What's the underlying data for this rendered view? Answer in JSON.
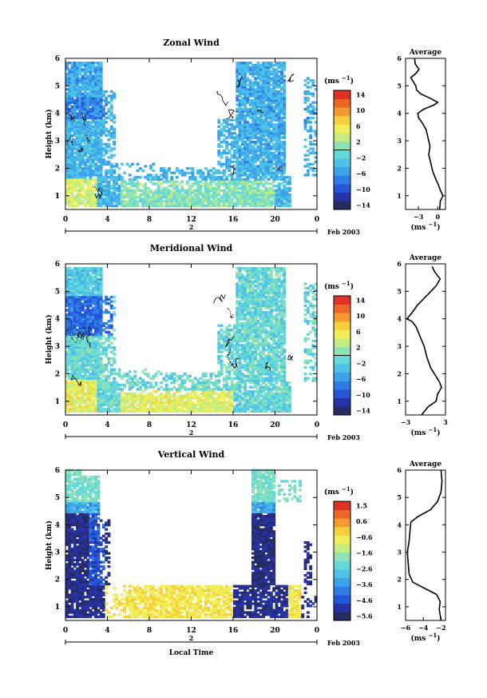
{
  "colors": {
    "cbar": [
      "#262b62",
      "#2633a6",
      "#2555d8",
      "#2f7ce6",
      "#3ca3e8",
      "#4cc2e8",
      "#66d8d8",
      "#8fe3b2",
      "#c2ed80",
      "#f0ee56",
      "#f7cf3c",
      "#f59a2f",
      "#ec6727",
      "#e03127"
    ],
    "line": "#000000",
    "bg": "#ffffff"
  },
  "chart_data": [
    {
      "type": "heatmap",
      "title": "Zonal Wind",
      "ylabel": "Height (km)",
      "xlabel": "",
      "x_ticks": [
        "0",
        "4",
        "8",
        "12",
        "16",
        "20",
        "0"
      ],
      "y_ticks": [
        "1",
        "2",
        "3",
        "4",
        "5",
        "6"
      ],
      "x_domain": [
        0,
        24
      ],
      "y_domain": [
        0.5,
        6
      ],
      "date_label": "2",
      "month_label": "Feb 2003",
      "colorbar": {
        "unit": "(ms",
        "unit_sup": "−1",
        "ticks": [
          "14",
          "10",
          "6",
          "2",
          "−2",
          "−6",
          "−10",
          "−14"
        ],
        "range": [
          -16,
          16
        ],
        "zero_level": 0
      },
      "profile": {
        "title": "Average",
        "xlabel": "(ms",
        "xlabel_sup": "−1",
        "x_ticks": [
          "−3",
          "0"
        ],
        "x_ticks_values": [
          -3,
          0
        ],
        "xlim": [
          -5,
          1.2
        ],
        "y_ticks": [
          "1",
          "2",
          "3",
          "4",
          "5",
          "6"
        ],
        "points": [
          [
            0.3,
            0.5
          ],
          [
            0.4,
            0.8
          ],
          [
            0.8,
            1.0
          ],
          [
            0.4,
            1.2
          ],
          [
            0.1,
            1.4
          ],
          [
            -0.3,
            1.6
          ],
          [
            -0.8,
            1.9
          ],
          [
            -1.1,
            2.2
          ],
          [
            -1.4,
            2.5
          ],
          [
            -1.2,
            2.8
          ],
          [
            -1.5,
            3.1
          ],
          [
            -1.8,
            3.4
          ],
          [
            -2.4,
            3.65
          ],
          [
            -3.0,
            3.85
          ],
          [
            -3.1,
            4.0
          ],
          [
            -2.2,
            4.15
          ],
          [
            -0.6,
            4.3
          ],
          [
            0.0,
            4.4
          ],
          [
            -1.2,
            4.55
          ],
          [
            -2.6,
            4.7
          ],
          [
            -3.3,
            4.85
          ],
          [
            -3.4,
            5.0
          ],
          [
            -3.8,
            5.15
          ],
          [
            -4.2,
            5.3
          ],
          [
            -3.4,
            5.45
          ],
          [
            -2.9,
            5.6
          ],
          [
            -3.5,
            5.8
          ],
          [
            -3.6,
            6.0
          ]
        ]
      }
    },
    {
      "type": "heatmap",
      "title": "Meridional Wind",
      "ylabel": "Height (km)",
      "xlabel": "",
      "x_ticks": [
        "0",
        "4",
        "8",
        "12",
        "16",
        "20",
        "0"
      ],
      "y_ticks": [
        "1",
        "2",
        "3",
        "4",
        "5",
        "6"
      ],
      "x_domain": [
        0,
        24
      ],
      "y_domain": [
        0.5,
        6
      ],
      "date_label": "2",
      "month_label": "Feb 2003",
      "colorbar": {
        "unit": "(ms",
        "unit_sup": "−1",
        "ticks": [
          "14",
          "10",
          "6",
          "2",
          "−2",
          "−6",
          "−10",
          "−14"
        ],
        "range": [
          -16,
          16
        ],
        "zero_level": 0
      },
      "profile": {
        "title": "Average",
        "xlabel": "(ms",
        "xlabel_sup": "−1",
        "x_ticks": [
          "−3",
          "3"
        ],
        "x_ticks_values": [
          -3,
          3
        ],
        "xlim": [
          -3,
          3
        ],
        "y_ticks": [
          "1",
          "2",
          "3",
          "4",
          "5",
          "6"
        ],
        "points": [
          [
            -0.6,
            0.5
          ],
          [
            0.4,
            0.8
          ],
          [
            1.6,
            1.0
          ],
          [
            1.8,
            1.25
          ],
          [
            2.4,
            1.5
          ],
          [
            2.1,
            1.7
          ],
          [
            1.6,
            1.9
          ],
          [
            0.8,
            2.2
          ],
          [
            0.2,
            2.6
          ],
          [
            -0.2,
            3.0
          ],
          [
            -0.9,
            3.4
          ],
          [
            -1.4,
            3.7
          ],
          [
            -2.0,
            3.9
          ],
          [
            -2.8,
            4.0
          ],
          [
            -2.1,
            4.2
          ],
          [
            -1.2,
            4.5
          ],
          [
            0.0,
            4.8
          ],
          [
            0.8,
            5.0
          ],
          [
            1.6,
            5.2
          ],
          [
            2.2,
            5.45
          ],
          [
            1.4,
            5.7
          ],
          [
            1.0,
            5.9
          ]
        ]
      }
    },
    {
      "type": "heatmap",
      "title": "Vertical Wind",
      "ylabel": "Height (km)",
      "xlabel": "Local Time",
      "x_ticks": [
        "0",
        "4",
        "8",
        "12",
        "16",
        "20",
        "0"
      ],
      "y_ticks": [
        "1",
        "2",
        "3",
        "4",
        "5",
        "6"
      ],
      "x_domain": [
        0,
        24
      ],
      "y_domain": [
        0.5,
        6
      ],
      "date_label": "2",
      "month_label": "Feb 2003",
      "colorbar": {
        "unit": "(ms",
        "unit_sup": "−1",
        "ticks": [
          "1.5",
          "0.6",
          "−0.6",
          "−1.6",
          "−2.6",
          "−3.6",
          "−4.6",
          "−5.6"
        ],
        "range": [
          -6.1,
          2.0
        ],
        "zero_level": null
      },
      "profile": {
        "title": "Average",
        "xlabel": "(ms",
        "xlabel_sup": "−1",
        "x_ticks": [
          "−6",
          "−4",
          "−2"
        ],
        "x_ticks_values": [
          -6,
          -4,
          -2
        ],
        "xlim": [
          -6,
          -1.5
        ],
        "y_ticks": [
          "1",
          "2",
          "3",
          "4",
          "5",
          "6"
        ],
        "points": [
          [
            -2.0,
            0.5
          ],
          [
            -2.2,
            0.9
          ],
          [
            -2.1,
            1.2
          ],
          [
            -2.5,
            1.45
          ],
          [
            -3.4,
            1.6
          ],
          [
            -4.3,
            1.75
          ],
          [
            -5.2,
            1.9
          ],
          [
            -5.6,
            2.2
          ],
          [
            -5.7,
            2.6
          ],
          [
            -5.8,
            3.0
          ],
          [
            -5.6,
            3.4
          ],
          [
            -5.5,
            3.8
          ],
          [
            -5.4,
            4.1
          ],
          [
            -4.6,
            4.3
          ],
          [
            -3.2,
            4.55
          ],
          [
            -2.4,
            4.85
          ],
          [
            -2.0,
            5.2
          ],
          [
            -1.9,
            5.6
          ],
          [
            -2.0,
            6.0
          ]
        ]
      }
    }
  ]
}
